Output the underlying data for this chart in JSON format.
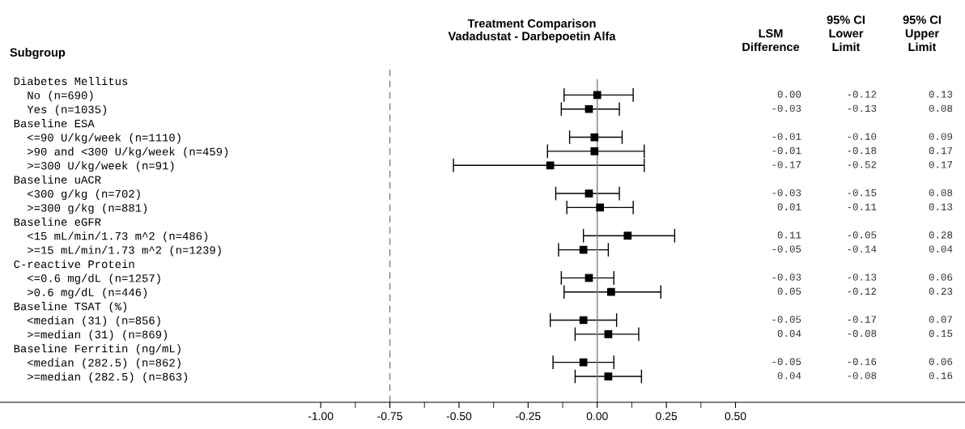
{
  "chart_data": [
    {
      "type": "scatter",
      "orientation": "horizontal",
      "title": "Treatment Comparison\nVadadustat - Darbepoetin Alfa",
      "categories": [
        "Diabetes Mellitus",
        "  No (n=690)",
        "  Yes (n=1035)",
        "Baseline ESA",
        "  <=90 U/kg/week (n=1110)",
        "  >90 and <300 U/kg/week (n=459)",
        "  >=300 U/kg/week (n=91)",
        "Baseline uACR",
        "  <300 g/kg (n=702)",
        "  >=300 g/kg (n=881)",
        "Baseline eGFR",
        "  <15 mL/min/1.73 m^2 (n=486)",
        "  >=15 mL/min/1.73 m^2 (n=1239)",
        "C-reactive Protein",
        "  <=0.6 mg/dL (n=1257)",
        "  >0.6 mg/dL (n=446)",
        "Baseline TSAT (%)",
        "  <median (31) (n=856)",
        "  >=median (31) (n=869)",
        "Baseline Ferritin (ng/mL)",
        "  <median (282.5) (n=862)",
        "  >=median (282.5) (n=863)"
      ],
      "series": [
        {
          "color": "#000000",
          "values": [
            null,
            0.0,
            -0.03,
            null,
            -0.01,
            -0.01,
            -0.17,
            null,
            -0.03,
            0.01,
            null,
            0.11,
            -0.05,
            null,
            -0.03,
            0.05,
            null,
            -0.05,
            0.04,
            null,
            -0.05,
            0.04
          ],
          "errors": [
            null,
            [
              -0.12,
              0.13
            ],
            [
              -0.13,
              0.08
            ],
            null,
            [
              -0.1,
              0.09
            ],
            [
              -0.18,
              0.17
            ],
            [
              -0.52,
              0.17
            ],
            null,
            [
              -0.15,
              0.08
            ],
            [
              -0.11,
              0.13
            ],
            null,
            [
              -0.05,
              0.28
            ],
            [
              -0.14,
              0.04
            ],
            null,
            [
              -0.13,
              0.06
            ],
            [
              -0.12,
              0.23
            ],
            null,
            [
              -0.17,
              0.07
            ],
            [
              -0.08,
              0.15
            ],
            null,
            [
              -0.16,
              0.06
            ],
            [
              -0.08,
              0.16
            ]
          ]
        }
      ],
      "marker": "square",
      "grid": false,
      "xlim": [
        -2.16,
        1.33
      ],
      "xticks": [
        {
          "value": -1.0,
          "label": "-1.00"
        },
        {
          "value": -0.75,
          "label": "-0.75"
        },
        {
          "value": -0.5,
          "label": "-0.50"
        },
        {
          "value": -0.25,
          "label": "-0.25"
        },
        {
          "value": 0,
          "label": "0.00"
        },
        {
          "value": 0.25,
          "label": "0.25"
        },
        {
          "value": 0.5,
          "label": "0.50"
        }
      ],
      "ref_lines": [
        {
          "axis": "x",
          "value": -0.75,
          "line_style": "dashed",
          "color": "#808080"
        },
        {
          "axis": "x",
          "value": 0,
          "line_style": "solid",
          "color": "#808080"
        }
      ],
      "annotations": [
        "Subgroup"
      ]
    },
    {
      "type": "other",
      "annotations": [
        "LSM\nDifference",
        "95% CI\nLower\nLimit",
        "95% CI\nUpper\nLimit",
        "0.00\n-0.03\n\n-0.01\n-0.01\n-0.17\n\n-0.03\n0.01\n\n0.11\n-0.05\n\n-0.03\n0.05\n\n-0.05\n0.04\n\n-0.05\n0.04",
        "-0.12\n-0.13\n\n-0.10\n-0.18\n-0.52\n\n-0.15\n-0.11\n\n-0.05\n-0.14\n\n-0.13\n-0.12\n\n-0.17\n-0.08\n\n-0.16\n-0.08",
        "0.13\n0.08\n\n0.09\n0.17\n0.17\n\n0.08\n0.13\n\n0.28\n0.04\n\n0.06\n0.23\n\n0.07\n0.15\n\n0.06\n0.16"
      ]
    }
  ]
}
